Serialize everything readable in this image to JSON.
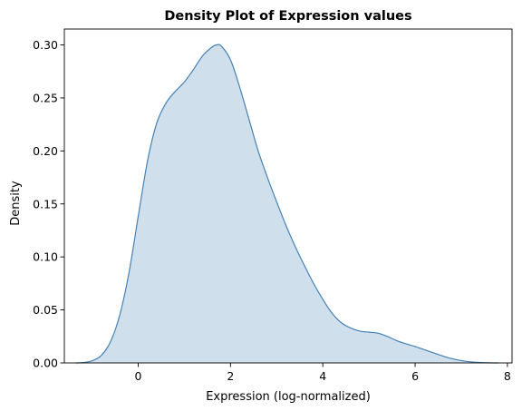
{
  "chart_data": {
    "type": "area",
    "title": "Density Plot of Expression values",
    "xlabel": "Expression (log-normalized)",
    "ylabel": "Density",
    "xlim": [
      -1.6,
      8.1
    ],
    "ylim": [
      0,
      0.315
    ],
    "xticks": [
      0,
      2,
      4,
      6,
      8
    ],
    "yticks": [
      "0.00",
      "0.05",
      "0.10",
      "0.15",
      "0.20",
      "0.25",
      "0.30"
    ],
    "grid": false,
    "legend": "none",
    "series": [
      {
        "color": "#4682b4",
        "fill": "#cfdfec",
        "x": [
          -1.35,
          -1.2,
          -1.0,
          -0.8,
          -0.6,
          -0.4,
          -0.2,
          0.0,
          0.2,
          0.4,
          0.6,
          0.8,
          1.0,
          1.2,
          1.4,
          1.6,
          1.7,
          1.8,
          2.0,
          2.2,
          2.4,
          2.6,
          2.8,
          3.0,
          3.2,
          3.4,
          3.6,
          3.8,
          4.0,
          4.2,
          4.4,
          4.6,
          4.8,
          5.0,
          5.2,
          5.4,
          5.6,
          5.8,
          6.0,
          6.2,
          6.4,
          6.6,
          6.8,
          7.0,
          7.2,
          7.4,
          7.6,
          7.8
        ],
        "y": [
          0.0,
          0.0003,
          0.002,
          0.007,
          0.02,
          0.045,
          0.085,
          0.138,
          0.19,
          0.226,
          0.245,
          0.256,
          0.265,
          0.277,
          0.29,
          0.298,
          0.3,
          0.299,
          0.286,
          0.26,
          0.23,
          0.2,
          0.175,
          0.152,
          0.13,
          0.11,
          0.092,
          0.075,
          0.06,
          0.047,
          0.038,
          0.033,
          0.03,
          0.029,
          0.028,
          0.025,
          0.021,
          0.018,
          0.0155,
          0.0125,
          0.0095,
          0.0065,
          0.004,
          0.0022,
          0.001,
          0.0004,
          0.0001,
          0.0
        ]
      }
    ]
  }
}
